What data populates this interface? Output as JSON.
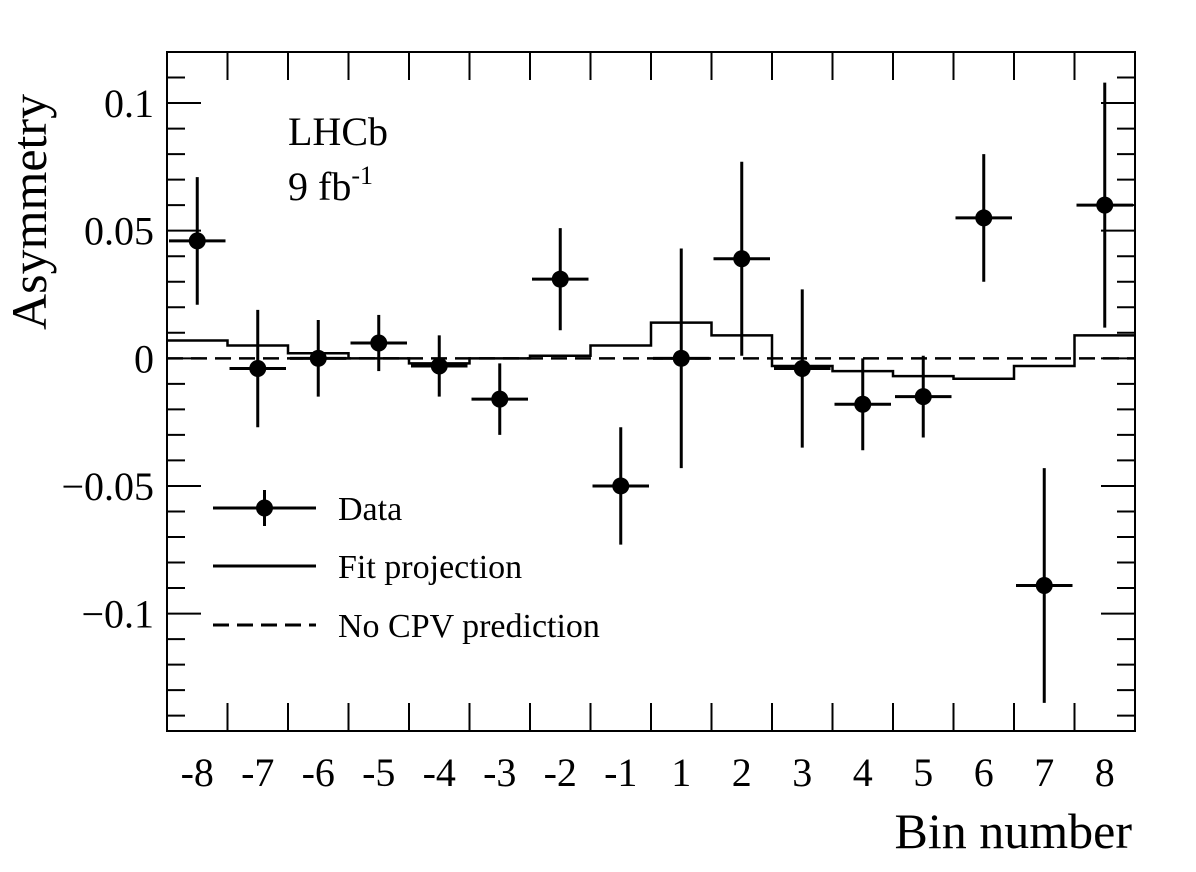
{
  "chart_data": {
    "type": "scatter",
    "title": "",
    "xlabel": "Bin number",
    "ylabel": "Asymmetry",
    "annotations": {
      "experiment": "LHCb",
      "lumi_value": "9 fb",
      "lumi_exp": "-1"
    },
    "categories": [
      "-8",
      "-7",
      "-6",
      "-5",
      "-4",
      "-3",
      "-2",
      "-1",
      "1",
      "2",
      "3",
      "4",
      "5",
      "6",
      "7",
      "8"
    ],
    "ylim": [
      -0.146,
      0.12
    ],
    "y_ticks": [
      {
        "v": 0.1,
        "label": "0.1"
      },
      {
        "v": 0.05,
        "label": "0.05"
      },
      {
        "v": 0,
        "label": "0"
      },
      {
        "v": -0.05,
        "label": "−0.05"
      },
      {
        "v": -0.1,
        "label": "−0.1"
      }
    ],
    "series": [
      {
        "name": "Data",
        "kind": "points",
        "values": [
          0.046,
          -0.004,
          0.0,
          0.006,
          -0.003,
          -0.016,
          0.031,
          -0.05,
          0.0,
          0.039,
          -0.004,
          -0.018,
          -0.015,
          0.055,
          -0.089,
          0.06
        ],
        "errors": [
          0.025,
          0.023,
          0.015,
          0.011,
          0.012,
          0.014,
          0.02,
          0.023,
          0.043,
          0.038,
          0.031,
          0.018,
          0.016,
          0.025,
          0.046,
          0.048
        ]
      },
      {
        "name": "Fit projection",
        "kind": "step",
        "values": [
          0.007,
          0.005,
          0.002,
          0.0,
          -0.002,
          0.0,
          0.001,
          0.005,
          0.014,
          0.009,
          -0.003,
          -0.005,
          -0.007,
          -0.008,
          -0.003,
          0.009
        ]
      },
      {
        "name": "No CPV prediction",
        "kind": "dashed-line",
        "value": 0
      }
    ],
    "legend": {
      "placement": "bottom-left",
      "entries": [
        "Data",
        "Fit projection",
        "No CPV prediction"
      ]
    },
    "grid": false
  }
}
